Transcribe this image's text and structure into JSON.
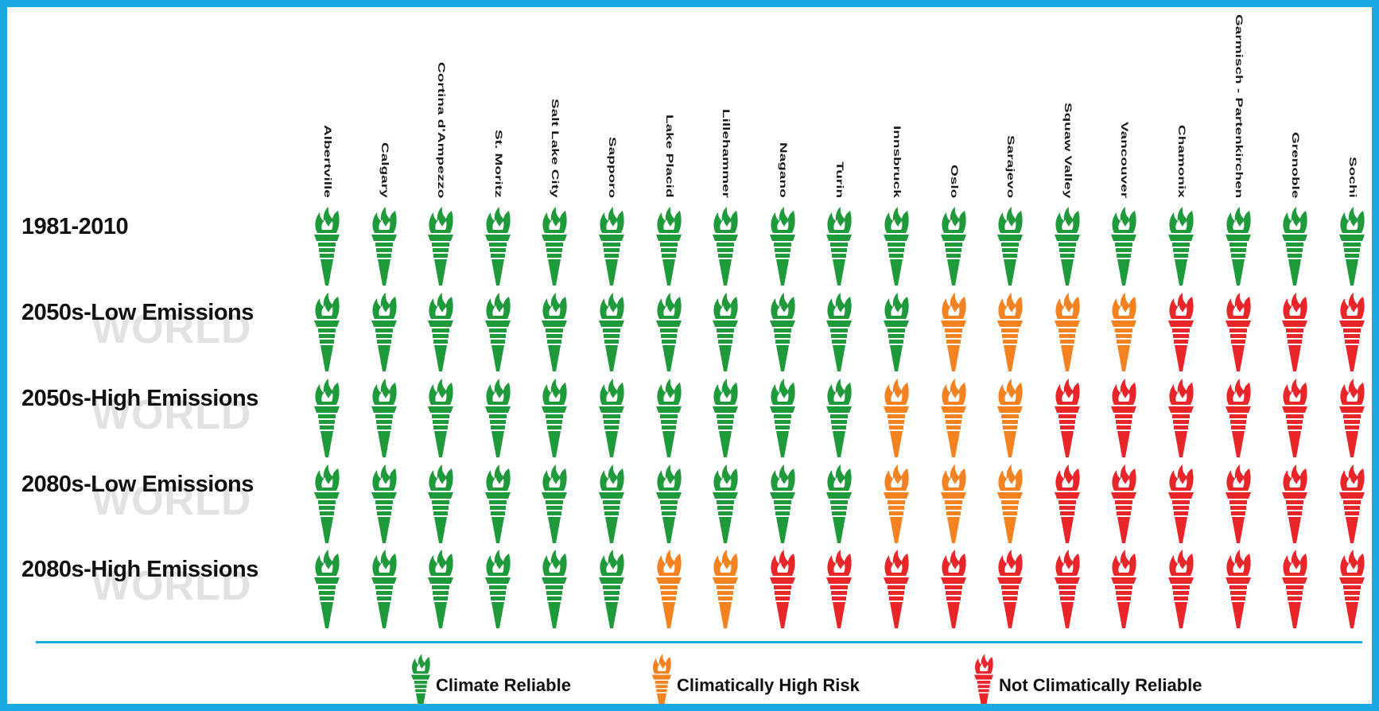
{
  "cities": [
    "Albertville",
    "Calgary",
    "Cortina d'Ampezzo",
    "St. Moritz",
    "Salt Lake City",
    "Sapporo",
    "Lake Placid",
    "Lillehammer",
    "Nagano",
    "Turin",
    "Innsbruck",
    "Oslo",
    "Sarajevo",
    "Squaw Valley",
    "Vancouver",
    "Chamonix",
    "Garmisch - Partenkirchen",
    "Grenoble",
    "Sochi"
  ],
  "scenarios": [
    {
      "label": "1981-2010",
      "watermark": "",
      "ratings": [
        "reliable",
        "reliable",
        "reliable",
        "reliable",
        "reliable",
        "reliable",
        "reliable",
        "reliable",
        "reliable",
        "reliable",
        "reliable",
        "reliable",
        "reliable",
        "reliable",
        "reliable",
        "reliable",
        "reliable",
        "reliable",
        "reliable"
      ]
    },
    {
      "label": "2050s-Low Emissions",
      "watermark": "WORLD",
      "ratings": [
        "reliable",
        "reliable",
        "reliable",
        "reliable",
        "reliable",
        "reliable",
        "reliable",
        "reliable",
        "reliable",
        "reliable",
        "reliable",
        "high_risk",
        "high_risk",
        "high_risk",
        "high_risk",
        "not_reliable",
        "not_reliable",
        "not_reliable",
        "not_reliable"
      ]
    },
    {
      "label": "2050s-High Emissions",
      "watermark": "WORLD",
      "ratings": [
        "reliable",
        "reliable",
        "reliable",
        "reliable",
        "reliable",
        "reliable",
        "reliable",
        "reliable",
        "reliable",
        "reliable",
        "high_risk",
        "high_risk",
        "high_risk",
        "not_reliable",
        "not_reliable",
        "not_reliable",
        "not_reliable",
        "not_reliable",
        "not_reliable"
      ]
    },
    {
      "label": "2080s-Low Emissions",
      "watermark": "WORLD",
      "ratings": [
        "reliable",
        "reliable",
        "reliable",
        "reliable",
        "reliable",
        "reliable",
        "reliable",
        "reliable",
        "reliable",
        "reliable",
        "high_risk",
        "high_risk",
        "high_risk",
        "not_reliable",
        "not_reliable",
        "not_reliable",
        "not_reliable",
        "not_reliable",
        "not_reliable"
      ]
    },
    {
      "label": "2080s-High Emissions",
      "watermark": "WORLD",
      "ratings": [
        "reliable",
        "reliable",
        "reliable",
        "reliable",
        "reliable",
        "reliable",
        "high_risk",
        "high_risk",
        "not_reliable",
        "not_reliable",
        "not_reliable",
        "not_reliable",
        "not_reliable",
        "not_reliable",
        "not_reliable",
        "not_reliable",
        "not_reliable",
        "not_reliable",
        "not_reliable"
      ]
    }
  ],
  "legend": [
    {
      "key": "reliable",
      "label": "Climate Reliable"
    },
    {
      "key": "high_risk",
      "label": "Climatically High Risk"
    },
    {
      "key": "not_reliable",
      "label": "Not Climatically Reliable"
    }
  ],
  "colors": {
    "reliable": "#1e9a3a",
    "high_risk": "#f58220",
    "not_reliable": "#e8262a",
    "frame": "#1aa9e0"
  },
  "icon": "olympic-torch-icon"
}
